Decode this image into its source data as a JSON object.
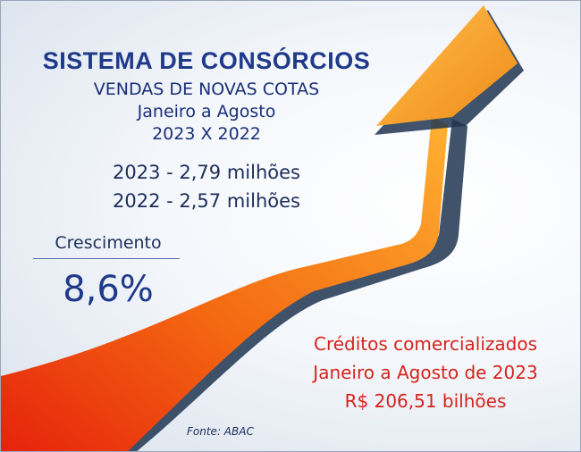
{
  "title": "SISTEMA DE CONSÓRCIOS",
  "subtitle_lines": [
    "VENDAS DE NOVAS COTAS",
    "Janeiro a Agosto",
    "2023 X 2022"
  ],
  "stats": [
    "2023 - 2,79 milhões",
    "2022 - 2,57 milhões"
  ],
  "growth": {
    "label": "Crescimento",
    "value": "8,6%"
  },
  "credits": [
    "Créditos comercializados",
    "Janeiro a Agosto de 2023",
    "R$ 206,51 bilhões"
  ],
  "source": "Fonte: ABAC",
  "icon": "growth-arrow-icon",
  "colors": {
    "title": "#1f3a8a",
    "text": "#1c2e5a",
    "credits": "#d6231b",
    "arrow_light": "#ffa22a",
    "arrow_dark": "#e8320e",
    "arrow_side": "#1f3550"
  }
}
